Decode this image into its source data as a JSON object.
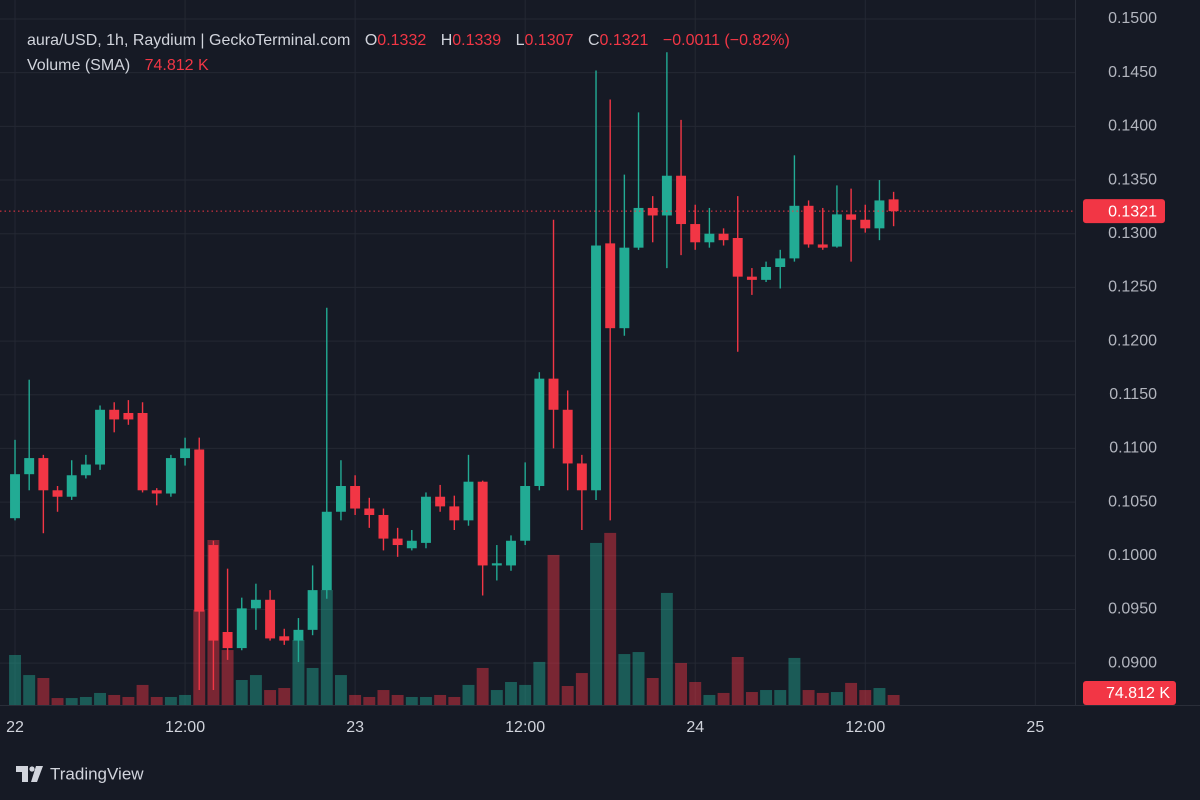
{
  "chart_data": {
    "type": "candlestick",
    "title": "aura/USD, 1h, Raydium | GeckoTerminal.com",
    "ohlc_labels": [
      "O",
      "H",
      "L",
      "C"
    ],
    "change_label": "−0.0011 (−0.82%)",
    "brand": "TradingView",
    "up_color": "#22ab94",
    "down_color": "#f23645",
    "grid": true,
    "x": [
      0,
      1,
      2,
      3,
      4,
      5,
      6,
      7,
      8,
      9,
      10,
      11,
      12,
      13,
      14,
      15,
      16,
      17,
      18,
      19,
      20,
      21,
      22,
      23,
      24,
      25,
      26,
      27,
      28,
      29,
      30,
      31,
      32,
      33,
      34,
      35,
      36,
      37,
      38,
      39,
      40,
      41,
      42,
      43,
      44,
      45,
      46,
      47,
      48,
      49,
      50,
      51,
      52,
      53,
      54,
      55,
      56,
      57,
      58,
      59,
      60,
      61,
      62
    ],
    "open": [
      0.1035,
      0.1076,
      0.1091,
      0.1061,
      0.1055,
      0.1075,
      0.1085,
      0.1136,
      0.1133,
      0.1133,
      0.1061,
      0.1058,
      0.1091,
      0.1099,
      0.101,
      0.0929,
      0.0914,
      0.0951,
      0.0959,
      0.0925,
      0.0921,
      0.0931,
      0.0968,
      0.1041,
      0.1065,
      0.1044,
      0.1038,
      0.1016,
      0.1007,
      0.1012,
      0.1055,
      0.1046,
      0.1033,
      0.1069,
      0.0991,
      0.0991,
      0.1014,
      0.1065,
      0.1165,
      0.1136,
      0.1086,
      0.1061,
      0.1291,
      0.1212,
      0.1287,
      0.1324,
      0.1317,
      0.1354,
      0.1309,
      0.1292,
      0.13,
      0.1296,
      0.126,
      0.1257,
      0.1269,
      0.1277,
      0.1326,
      0.129,
      0.1288,
      0.1318,
      0.1313,
      0.1305,
      0.1332
    ],
    "high": [
      0.1108,
      0.1164,
      0.1094,
      0.1065,
      0.1089,
      0.1094,
      0.114,
      0.1143,
      0.1145,
      0.1143,
      0.1063,
      0.1094,
      0.111,
      0.111,
      0.1014,
      0.0988,
      0.0961,
      0.0974,
      0.0968,
      0.0932,
      0.0942,
      0.0991,
      0.1231,
      0.1089,
      0.1075,
      0.1054,
      0.1044,
      0.1026,
      0.1024,
      0.1059,
      0.1066,
      0.1056,
      0.1094,
      0.107,
      0.101,
      0.1019,
      0.1087,
      0.1171,
      0.1313,
      0.1154,
      0.1094,
      0.1452,
      0.1425,
      0.1355,
      0.1413,
      0.1335,
      0.1469,
      0.1406,
      0.1327,
      0.1324,
      0.1305,
      0.1335,
      0.1268,
      0.1274,
      0.1285,
      0.1373,
      0.1331,
      0.1324,
      0.1345,
      0.1342,
      0.1327,
      0.135,
      0.1339
    ],
    "low": [
      0.1033,
      0.1061,
      0.1021,
      0.1041,
      0.1052,
      0.1072,
      0.108,
      0.1115,
      0.1122,
      0.1059,
      0.1047,
      0.1055,
      0.1084,
      0.0875,
      0.0875,
      0.0903,
      0.0912,
      0.0931,
      0.0921,
      0.0917,
      0.0901,
      0.0926,
      0.096,
      0.1033,
      0.1038,
      0.1026,
      0.1005,
      0.0999,
      0.1005,
      0.1007,
      0.1041,
      0.1024,
      0.1028,
      0.0963,
      0.0977,
      0.0986,
      0.101,
      0.1061,
      0.11,
      0.1061,
      0.1024,
      0.1052,
      0.1033,
      0.1205,
      0.1285,
      0.1292,
      0.1268,
      0.128,
      0.1285,
      0.1287,
      0.1289,
      0.119,
      0.1243,
      0.1255,
      0.1249,
      0.1274,
      0.1287,
      0.1285,
      0.1287,
      0.1274,
      0.1301,
      0.1294,
      0.1307
    ],
    "close": [
      0.1076,
      0.1091,
      0.1061,
      0.1055,
      0.1075,
      0.1085,
      0.1136,
      0.1127,
      0.1127,
      0.1061,
      0.1058,
      0.1091,
      0.11,
      0.0948,
      0.0921,
      0.0914,
      0.0951,
      0.0959,
      0.0923,
      0.0921,
      0.0931,
      0.0968,
      0.1041,
      0.1065,
      0.1044,
      0.1038,
      0.1016,
      0.101,
      0.1014,
      0.1055,
      0.1046,
      0.1033,
      0.1069,
      0.0991,
      0.0993,
      0.1014,
      0.1065,
      0.1165,
      0.1136,
      0.1086,
      0.1061,
      0.1289,
      0.1212,
      0.1287,
      0.1324,
      0.1317,
      0.1354,
      0.1309,
      0.1292,
      0.13,
      0.1294,
      0.126,
      0.1257,
      0.1269,
      0.1277,
      0.1326,
      0.129,
      0.1287,
      0.1318,
      0.1313,
      0.1305,
      0.1331,
      0.1321
    ],
    "volume": {
      "name": "Volume (SMA)",
      "axis": "y2",
      "values": [
        374,
        224,
        202,
        52,
        52,
        60,
        90,
        75,
        60,
        150,
        60,
        60,
        75,
        711,
        1234,
        411,
        187,
        224,
        112,
        127,
        486,
        277,
        860,
        224,
        75,
        60,
        112,
        75,
        60,
        60,
        75,
        60,
        150,
        277,
        112,
        172,
        150,
        322,
        1122,
        142,
        239,
        1212,
        1287,
        381,
        396,
        202,
        838,
        314,
        172,
        75,
        90,
        359,
        97,
        112,
        112,
        352,
        112,
        90,
        97,
        165,
        112,
        127,
        74.812
      ],
      "value_labels": [
        null,
        null,
        null,
        null,
        null,
        null,
        null,
        null,
        null,
        null,
        null,
        null,
        null,
        null,
        null,
        null,
        null,
        null,
        null,
        null,
        null,
        null,
        null,
        null,
        null,
        null,
        null,
        null,
        null,
        null,
        null,
        null,
        null,
        null,
        null,
        null,
        null,
        null,
        null,
        null,
        null,
        null,
        null,
        null,
        null,
        null,
        null,
        null,
        null,
        null,
        null,
        null,
        null,
        null,
        null,
        null,
        null,
        null,
        null,
        null,
        null,
        null,
        "74.812 K"
      ]
    },
    "xlim": [
      -1.06,
      74.8
    ],
    "xticks": [
      {
        "value": 0,
        "label": "22"
      },
      {
        "value": 12,
        "label": "12:00"
      },
      {
        "value": 24,
        "label": "23"
      },
      {
        "value": 36,
        "label": "12:00"
      },
      {
        "value": 48,
        "label": "24"
      },
      {
        "value": 60,
        "label": "12:00"
      },
      {
        "value": 72,
        "label": "25"
      }
    ],
    "ylim": [
      0.0861,
      0.15
    ],
    "yticks": [
      {
        "value": 0.09,
        "label": "0.0900"
      },
      {
        "value": 0.095,
        "label": "0.0950"
      },
      {
        "value": 0.1,
        "label": "0.1000"
      },
      {
        "value": 0.105,
        "label": "0.1050"
      },
      {
        "value": 0.11,
        "label": "0.1100"
      },
      {
        "value": 0.115,
        "label": "0.1150"
      },
      {
        "value": 0.12,
        "label": "0.1200"
      },
      {
        "value": 0.125,
        "label": "0.1250"
      },
      {
        "value": 0.13,
        "label": "0.1300"
      },
      {
        "value": 0.135,
        "label": "0.1350"
      },
      {
        "value": 0.14,
        "label": "0.1400"
      },
      {
        "value": 0.145,
        "label": "0.1450"
      },
      {
        "value": 0.15,
        "label": "0.1500"
      }
    ],
    "y2lim": [
      0,
      5130
    ]
  }
}
